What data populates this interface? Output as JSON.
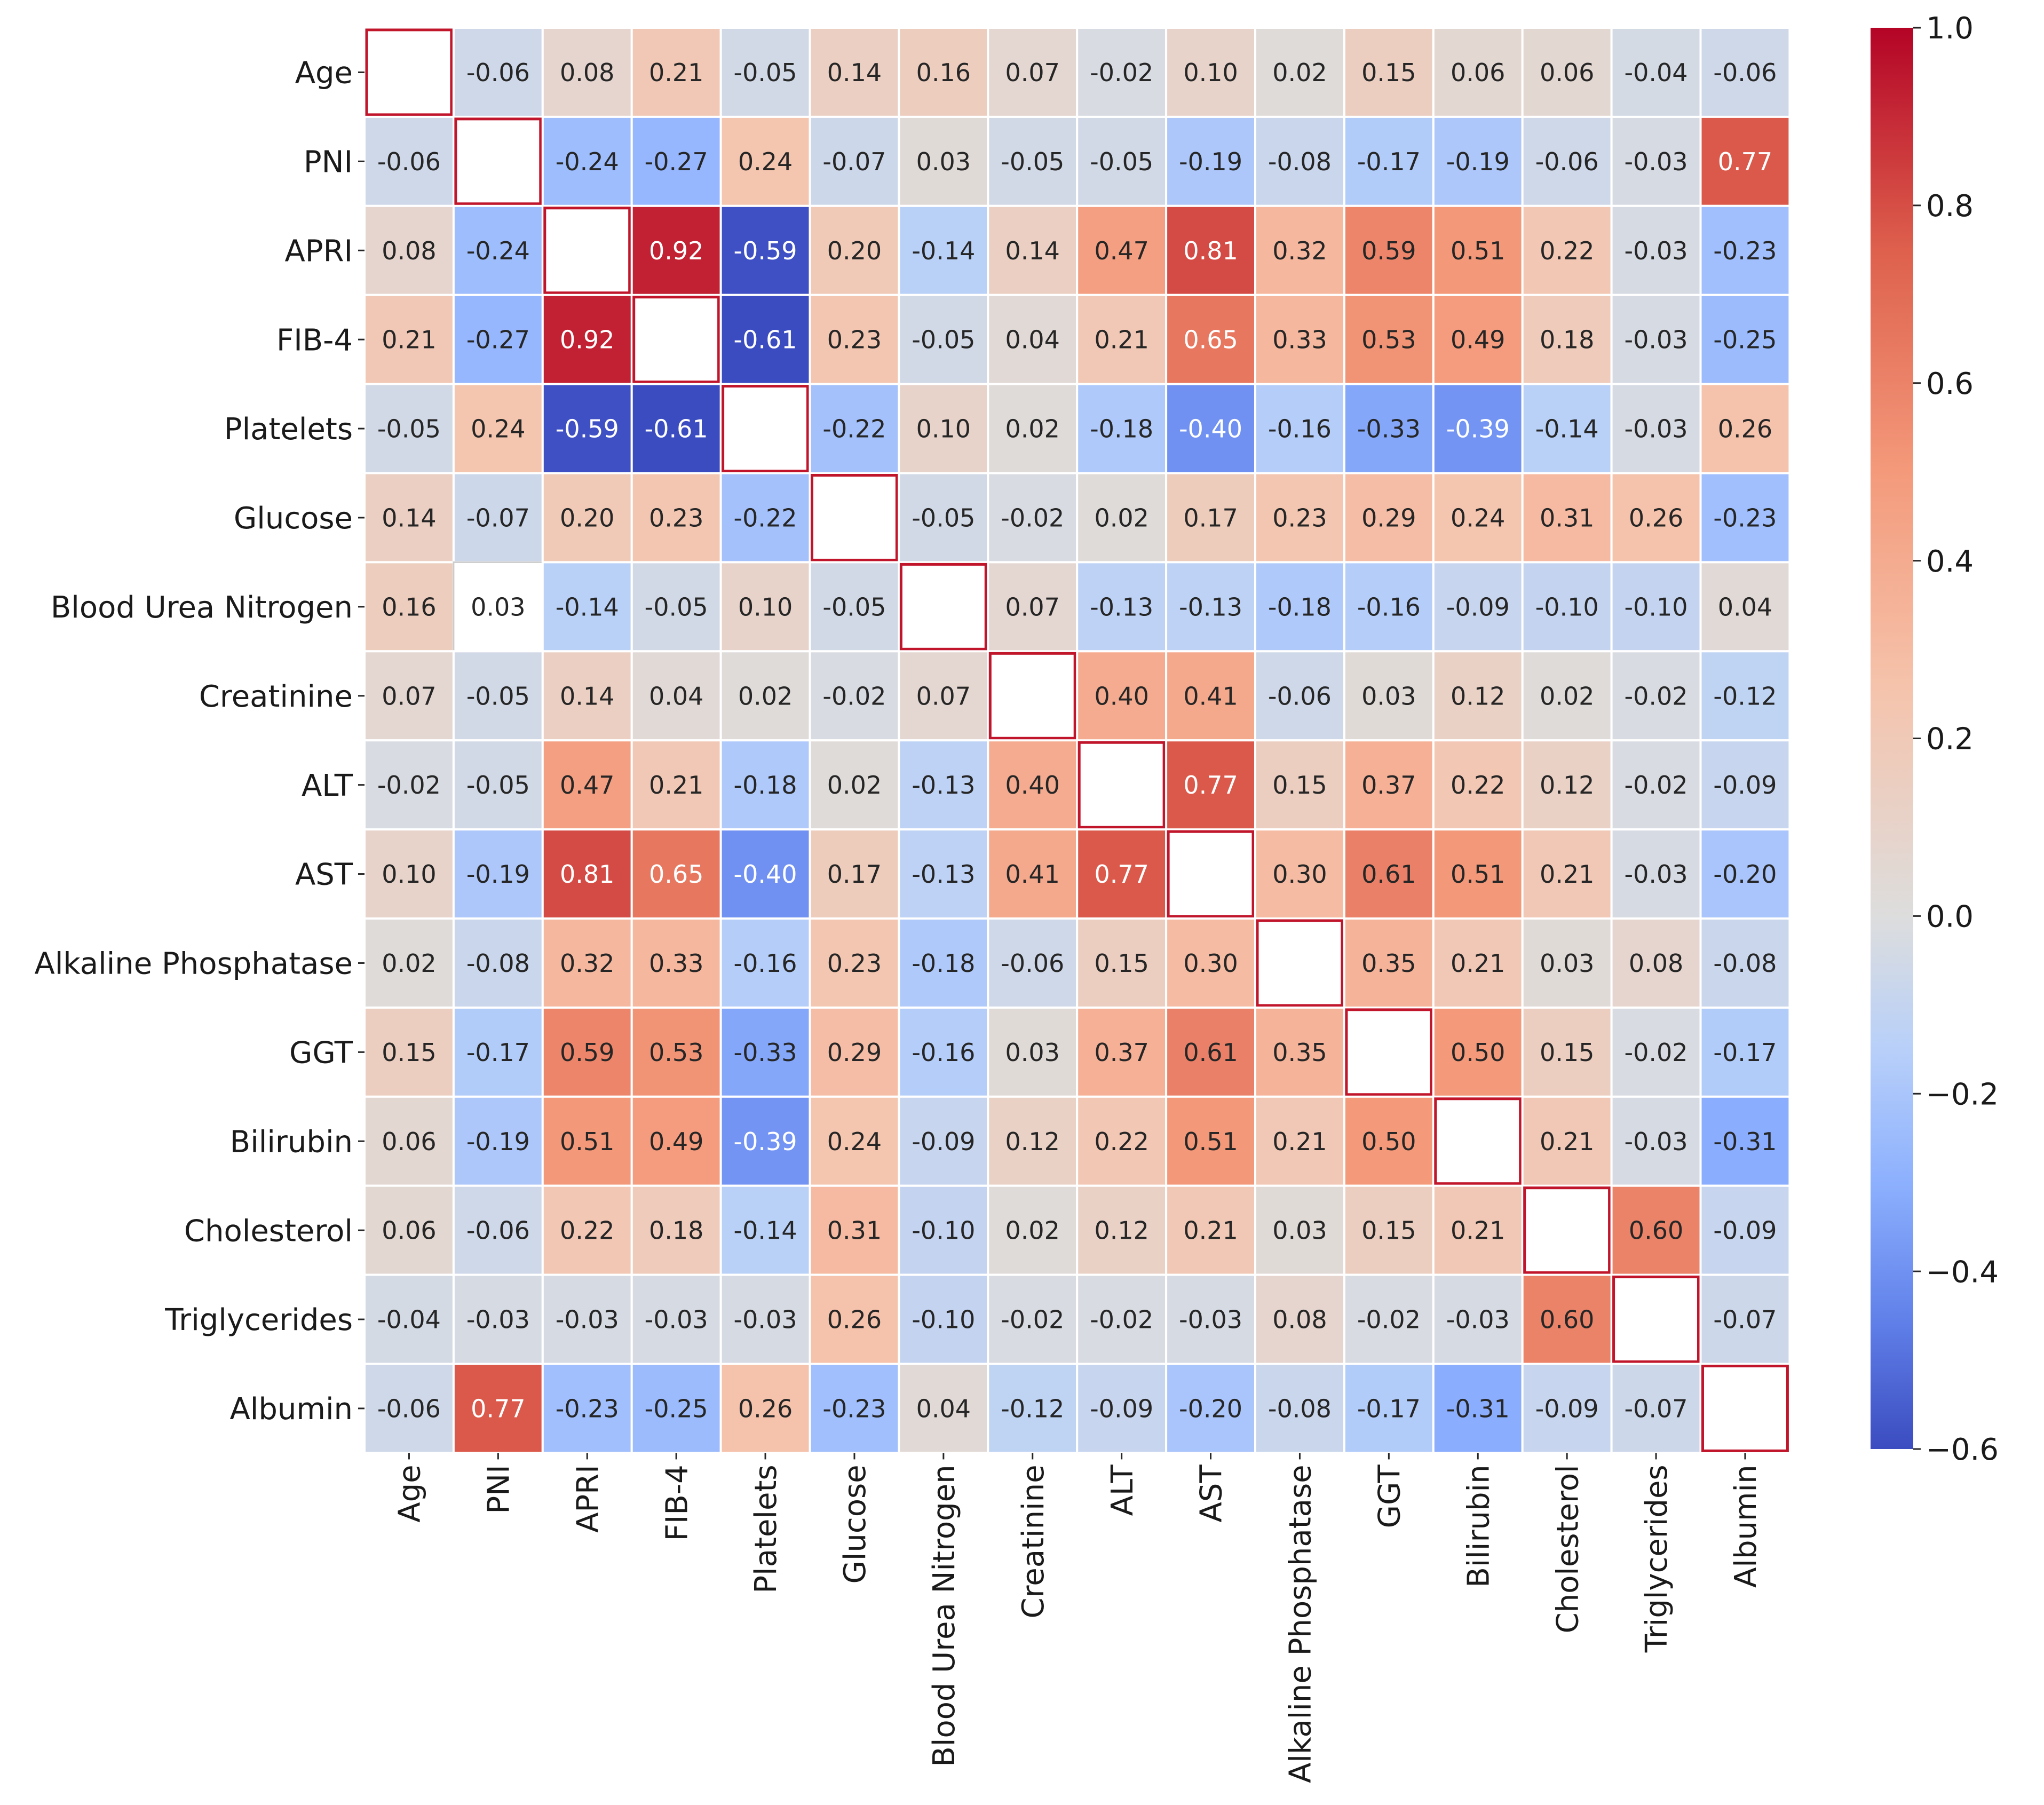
{
  "chart_data": {
    "type": "heatmap",
    "title": "",
    "xlabel": "",
    "ylabel": "",
    "labels": [
      "Age",
      "PNI",
      "APRI",
      "FIB-4",
      "Platelets",
      "Glucose",
      "Blood Urea Nitrogen",
      "Creatinine",
      "ALT",
      "AST",
      "Alkaline Phosphatase",
      "GGT",
      "Bilirubin",
      "Cholesterol",
      "Triglycerides",
      "Albumin"
    ],
    "matrix": [
      [
        null,
        -0.06,
        0.08,
        0.21,
        -0.05,
        0.14,
        0.16,
        0.07,
        -0.02,
        0.1,
        0.02,
        0.15,
        0.06,
        0.06,
        -0.04,
        -0.06
      ],
      [
        -0.06,
        null,
        -0.24,
        -0.27,
        0.24,
        -0.07,
        0.03,
        -0.05,
        -0.05,
        -0.19,
        -0.08,
        -0.17,
        -0.19,
        -0.06,
        -0.03,
        0.77
      ],
      [
        0.08,
        -0.24,
        null,
        0.92,
        -0.59,
        0.2,
        -0.14,
        0.14,
        0.47,
        0.81,
        0.32,
        0.59,
        0.51,
        0.22,
        -0.03,
        -0.23
      ],
      [
        0.21,
        -0.27,
        0.92,
        null,
        -0.61,
        0.23,
        -0.05,
        0.04,
        0.21,
        0.65,
        0.33,
        0.53,
        0.49,
        0.18,
        -0.03,
        -0.25
      ],
      [
        -0.05,
        0.24,
        -0.59,
        -0.61,
        null,
        -0.22,
        0.1,
        0.02,
        -0.18,
        -0.4,
        -0.16,
        -0.33,
        -0.39,
        -0.14,
        -0.03,
        0.26
      ],
      [
        0.14,
        -0.07,
        0.2,
        0.23,
        -0.22,
        null,
        -0.05,
        -0.02,
        0.02,
        0.17,
        0.23,
        0.29,
        0.24,
        0.31,
        0.26,
        -0.23
      ],
      [
        0.16,
        0.03,
        -0.14,
        -0.05,
        0.1,
        -0.05,
        null,
        0.07,
        -0.13,
        -0.13,
        -0.18,
        -0.16,
        -0.09,
        -0.1,
        -0.1,
        0.04
      ],
      [
        0.07,
        -0.05,
        0.14,
        0.04,
        0.02,
        -0.02,
        0.07,
        null,
        0.4,
        0.41,
        -0.06,
        0.03,
        0.12,
        0.02,
        -0.02,
        -0.12
      ],
      [
        -0.02,
        -0.05,
        0.47,
        0.21,
        -0.18,
        0.02,
        -0.13,
        0.4,
        null,
        0.77,
        0.15,
        0.37,
        0.22,
        0.12,
        -0.02,
        -0.09
      ],
      [
        0.1,
        -0.19,
        0.81,
        0.65,
        -0.4,
        0.17,
        -0.13,
        0.41,
        0.77,
        null,
        0.3,
        0.61,
        0.51,
        0.21,
        -0.03,
        -0.2
      ],
      [
        0.02,
        -0.08,
        0.32,
        0.33,
        -0.16,
        0.23,
        -0.18,
        -0.06,
        0.15,
        0.3,
        null,
        0.35,
        0.21,
        0.03,
        0.08,
        -0.08
      ],
      [
        0.15,
        -0.17,
        0.59,
        0.53,
        -0.33,
        0.29,
        -0.16,
        0.03,
        0.37,
        0.61,
        0.35,
        null,
        0.5,
        0.15,
        -0.02,
        -0.17
      ],
      [
        0.06,
        -0.19,
        0.51,
        0.49,
        -0.39,
        0.24,
        -0.09,
        0.12,
        0.22,
        0.51,
        0.21,
        0.5,
        null,
        0.21,
        -0.03,
        -0.31
      ],
      [
        0.06,
        -0.06,
        0.22,
        0.18,
        -0.14,
        0.31,
        -0.1,
        0.02,
        0.12,
        0.21,
        0.03,
        0.15,
        0.21,
        null,
        0.6,
        -0.09
      ],
      [
        -0.04,
        -0.03,
        -0.03,
        -0.03,
        -0.03,
        0.26,
        -0.1,
        -0.02,
        -0.02,
        -0.03,
        0.08,
        -0.02,
        -0.03,
        0.6,
        null,
        -0.07
      ],
      [
        -0.06,
        0.77,
        -0.23,
        -0.25,
        0.26,
        -0.23,
        0.04,
        -0.12,
        -0.09,
        -0.2,
        -0.08,
        -0.17,
        -0.31,
        -0.09,
        -0.07,
        null
      ]
    ],
    "highlighted_cells": [
      [
        6,
        1
      ]
    ],
    "colormap": "coolwarm",
    "vmin": -0.6,
    "vmax": 1.0,
    "colorbar_ticks": [
      1.0,
      0.8,
      0.6,
      0.4,
      0.2,
      0.0,
      -0.2,
      -0.4,
      -0.6
    ],
    "colorbar_tick_labels": [
      "1.0",
      "0.8",
      "0.6",
      "0.4",
      "0.2",
      "0.0",
      "−0.2",
      "−0.4",
      "−0.6"
    ],
    "legend": "right",
    "grid": true
  },
  "colors": {
    "cool_end": "#3b4cc0",
    "neutral": "#dddddd",
    "warm_end": "#b40426",
    "cell_border": "#ffffff",
    "diagonal_border": "#c0152a",
    "text_dark": "#262626",
    "text_light": "#ffffff"
  }
}
